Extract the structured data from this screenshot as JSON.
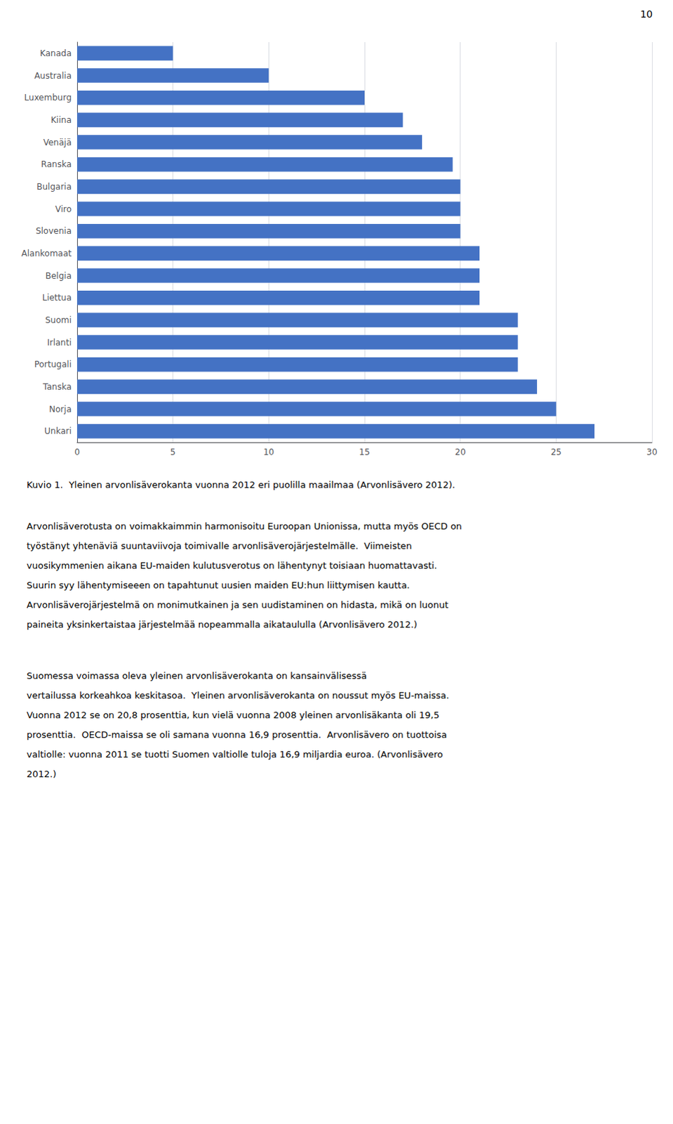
{
  "chart_data": {
    "type": "bar",
    "orientation": "horizontal",
    "categories": [
      "Kanada",
      "Australia",
      "Luxemburg",
      "Kiina",
      "Venäjä",
      "Ranska",
      "Bulgaria",
      "Viro",
      "Slovenia",
      "Alankomaat",
      "Belgia",
      "Liettua",
      "Suomi",
      "Irlanti",
      "Portugali",
      "Tanska",
      "Norja",
      "Unkari"
    ],
    "values": [
      5,
      10,
      15,
      17,
      18,
      19.6,
      20,
      20,
      20,
      21,
      21,
      21,
      23,
      23,
      23,
      24,
      25,
      27
    ],
    "color": "#4472C4",
    "xlim": [
      0,
      30
    ],
    "xticks": [
      0,
      5,
      10,
      15,
      20,
      25,
      30
    ],
    "grid": true,
    "annotations": [
      "10",
      "Kuvio 1.  Yleinen arvonlisäverokanta vuonna 2012 eri puolilla maailmaa (Arvonlisävero 2012).",
      "Arvonlisäverotusta on voimakkaimmin harmonisoitu Euroopan Unionissa, mutta myös OECD on\ntyöstänyt yhtenäviä suuntaviivoja toimivalle arvonlisäverojärjestelmälle.  Viimeisten\nvuosikymmenien aikana EU-maiden kulutusverotus on lähentynyt toisiaan huomattavasti.\nSuurin syy lähentymiseeen on tapahtunut uusien maiden EU:hun liittymisen kautta.\nArvonlisäverojärjestelmä on monimutkainen ja sen uudistaminen on hidasta, mikä on luonut\npaineita yksinkertaistaa järjestelmää nopeammalla aikataululla (Arvonlisävero 2012.)",
      "Suomessa voimassa oleva yleinen arvonlisäverokanta on kansainvälisessä\nvertailussa korkeahkoa keskitasoa.  Yleinen arvonlisäverokanta on noussut myös EU-maissa.\nVuonna 2012 se on 20,8 prosenttia, kun vielä vuonna 2008 yleinen arvonlisäkanta oli 19,5\nprosenttia.  OECD-maissa se oli samana vuonna 16,9 prosenttia.  Arvonlisävero on tuottoisa\nvaltiolle: vuonna 2011 se tuotti Suomen valtiolle tuloja 16,9 miljardia euroa. (Arvonlisävero\n2012.)"
    ]
  }
}
